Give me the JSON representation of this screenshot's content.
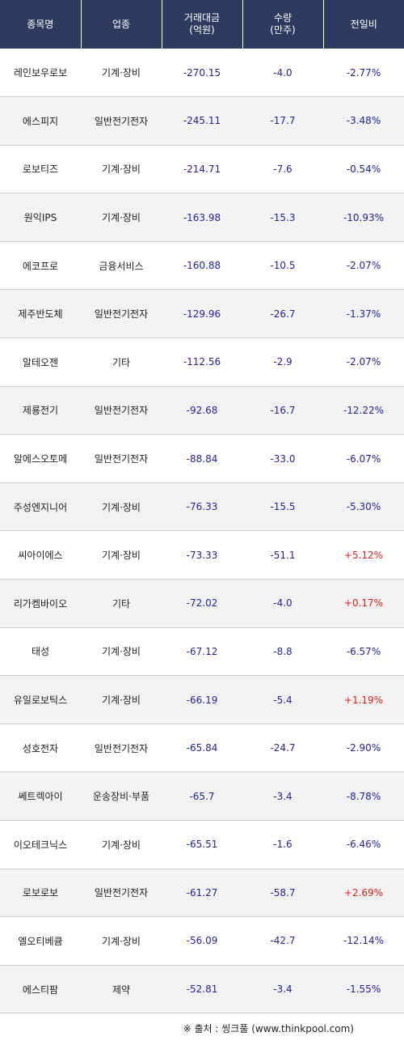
{
  "headers": {
    "name": "종목명",
    "sector": "업종",
    "amount_line1": "거래대금",
    "amount_line2": "(억원)",
    "volume_line1": "수량",
    "volume_line2": "(만주)",
    "change": "전일비"
  },
  "rows": [
    {
      "name": "레인보우로보",
      "sector": "기계·장비",
      "amount": "-270.15",
      "volume": "-4.0",
      "change": "-2.77%"
    },
    {
      "name": "에스피지",
      "sector": "일반전기전자",
      "amount": "-245.11",
      "volume": "-17.7",
      "change": "-3.48%"
    },
    {
      "name": "로보티즈",
      "sector": "기계·장비",
      "amount": "-214.71",
      "volume": "-7.6",
      "change": "-0.54%"
    },
    {
      "name": "원익IPS",
      "sector": "기계·장비",
      "amount": "-163.98",
      "volume": "-15.3",
      "change": "-10.93%"
    },
    {
      "name": "에코프로",
      "sector": "금융서비스",
      "amount": "-160.88",
      "volume": "-10.5",
      "change": "-2.07%"
    },
    {
      "name": "제주반도체",
      "sector": "일반전기전자",
      "amount": "-129.96",
      "volume": "-26.7",
      "change": "-1.37%"
    },
    {
      "name": "알테오젠",
      "sector": "기타",
      "amount": "-112.56",
      "volume": "-2.9",
      "change": "-2.07%"
    },
    {
      "name": "제룡전기",
      "sector": "일반전기전자",
      "amount": "-92.68",
      "volume": "-16.7",
      "change": "-12.22%"
    },
    {
      "name": "알에스오토메",
      "sector": "일반전기전자",
      "amount": "-88.84",
      "volume": "-33.0",
      "change": "-6.07%"
    },
    {
      "name": "주성엔지니어",
      "sector": "기계·장비",
      "amount": "-76.33",
      "volume": "-15.5",
      "change": "-5.30%"
    },
    {
      "name": "씨아이에스",
      "sector": "기계·장비",
      "amount": "-73.33",
      "volume": "-51.1",
      "change": "+5.12%"
    },
    {
      "name": "리가켐바이오",
      "sector": "기타",
      "amount": "-72.02",
      "volume": "-4.0",
      "change": "+0.17%"
    },
    {
      "name": "태성",
      "sector": "기계·장비",
      "amount": "-67.12",
      "volume": "-8.8",
      "change": "-6.57%"
    },
    {
      "name": "유일로보틱스",
      "sector": "기계·장비",
      "amount": "-66.19",
      "volume": "-5.4",
      "change": "+1.19%"
    },
    {
      "name": "성호전자",
      "sector": "일반전기전자",
      "amount": "-65.84",
      "volume": "-24.7",
      "change": "-2.90%"
    },
    {
      "name": "쎄트렉아이",
      "sector": "운송장비·부품",
      "amount": "-65.7",
      "volume": "-3.4",
      "change": "-8.78%"
    },
    {
      "name": "이오테크닉스",
      "sector": "기계·장비",
      "amount": "-65.51",
      "volume": "-1.6",
      "change": "-6.46%"
    },
    {
      "name": "로보로보",
      "sector": "일반전기전자",
      "amount": "-61.27",
      "volume": "-58.7",
      "change": "+2.69%"
    },
    {
      "name": "엘오티베큠",
      "sector": "기계·장비",
      "amount": "-56.09",
      "volume": "-42.7",
      "change": "-12.14%"
    },
    {
      "name": "에스티팜",
      "sector": "제약",
      "amount": "-52.81",
      "volume": "-3.4",
      "change": "-1.55%"
    }
  ],
  "colors": {
    "header_bg": "#2e3a60",
    "negative": "#2323a0",
    "positive": "#e02020"
  },
  "source": "※ 출처 : 씽크풀 (www.thinkpool.com)"
}
